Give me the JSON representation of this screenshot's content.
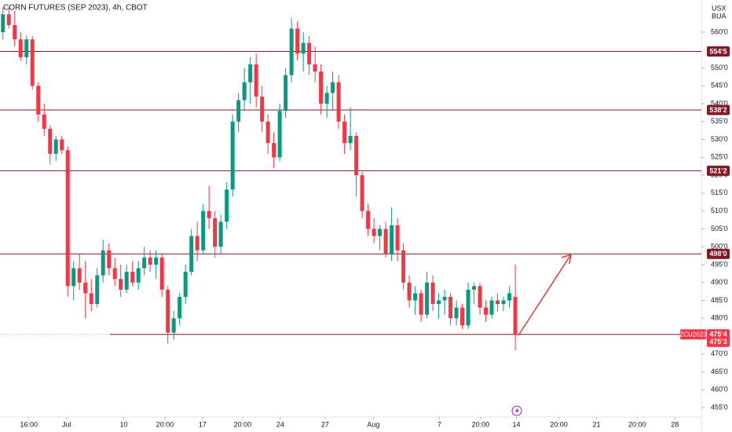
{
  "chart_data": {
    "type": "candlestick",
    "title": "CORN FUTURES (SEP 2023), 4h, CBOT",
    "currency": "USX",
    "unit": "BUA",
    "x": [
      0,
      1,
      2,
      3,
      4,
      5,
      6,
      7,
      8,
      9,
      10,
      11,
      12,
      13,
      14,
      15,
      16,
      17,
      18,
      19,
      20,
      21,
      22,
      23,
      24,
      25,
      26,
      27,
      28,
      29,
      30,
      31,
      32,
      33,
      34,
      35,
      36,
      37,
      38,
      39,
      40,
      41,
      42,
      43,
      44,
      45,
      46,
      47,
      48,
      49,
      50,
      51,
      52,
      53,
      54,
      55,
      56,
      57,
      58,
      59,
      60,
      61,
      62,
      63,
      64,
      65,
      66,
      67,
      68,
      69,
      70,
      71,
      72,
      73,
      74,
      75,
      76,
      77,
      78,
      79,
      80,
      81,
      82,
      83,
      84,
      85,
      86,
      87
    ],
    "open": [
      560,
      565,
      562,
      558,
      553,
      558,
      545,
      537,
      533,
      526,
      530,
      527,
      489,
      494,
      490,
      487,
      484,
      492,
      499,
      494,
      491,
      488,
      493,
      490,
      494,
      497,
      495,
      497,
      488,
      476,
      480,
      486,
      493,
      503,
      499,
      510,
      508,
      500,
      507,
      516,
      535,
      541,
      546,
      551,
      542,
      535,
      529,
      525,
      538,
      548,
      561,
      554,
      557,
      551,
      549,
      540,
      543,
      546,
      535,
      529,
      531,
      520,
      510,
      505,
      503,
      505,
      498,
      506,
      499,
      490,
      485,
      487,
      481,
      490,
      484,
      485,
      486,
      480,
      483,
      478,
      488,
      489,
      483,
      481,
      485,
      484,
      485,
      486
    ],
    "high": [
      567,
      567,
      566,
      560,
      559,
      559,
      546,
      540,
      534,
      531,
      531,
      528,
      496,
      498,
      496,
      491,
      494,
      502,
      501,
      497,
      495,
      495,
      496,
      496,
      500,
      499,
      499,
      498,
      489,
      482,
      487,
      495,
      505,
      507,
      512,
      517,
      510,
      509,
      518,
      537,
      543,
      550,
      553,
      554,
      545,
      537,
      532,
      540,
      550,
      564,
      563,
      560,
      559,
      556,
      551,
      545,
      549,
      548,
      537,
      539,
      532,
      521,
      512,
      508,
      506,
      507,
      511,
      508,
      501,
      492,
      489,
      488,
      493,
      492,
      487,
      488,
      487,
      485,
      484,
      490,
      490,
      490,
      485,
      486,
      487,
      486,
      489,
      495
    ],
    "low": [
      558,
      561,
      556,
      552,
      551,
      544,
      535,
      531,
      523,
      524,
      526,
      486,
      485,
      488,
      480,
      482,
      483,
      490,
      492,
      489,
      486,
      487,
      489,
      488,
      492,
      493,
      491,
      486,
      473,
      474,
      478,
      484,
      492,
      496,
      498,
      505,
      497,
      498,
      505,
      514,
      532,
      538,
      540,
      539,
      532,
      526,
      522,
      524,
      536,
      546,
      552,
      549,
      548,
      546,
      537,
      536,
      538,
      533,
      526,
      527,
      514,
      508,
      503,
      501,
      499,
      497,
      496,
      496,
      488,
      483,
      481,
      479,
      480,
      482,
      480,
      481,
      478,
      478,
      477,
      477,
      484,
      481,
      479,
      480,
      482,
      482,
      483,
      471
    ],
    "close": [
      565,
      562,
      558,
      553,
      558,
      545,
      537,
      533,
      526,
      530,
      527,
      489,
      494,
      490,
      487,
      484,
      492,
      499,
      494,
      491,
      488,
      493,
      490,
      494,
      497,
      495,
      497,
      488,
      476,
      480,
      486,
      493,
      503,
      499,
      510,
      508,
      500,
      507,
      516,
      535,
      541,
      546,
      551,
      542,
      535,
      529,
      525,
      538,
      548,
      561,
      554,
      557,
      551,
      549,
      540,
      543,
      546,
      535,
      529,
      531,
      520,
      510,
      505,
      503,
      505,
      498,
      506,
      499,
      490,
      485,
      487,
      481,
      490,
      484,
      485,
      486,
      480,
      483,
      478,
      488,
      489,
      483,
      481,
      485,
      484,
      485,
      487,
      475.375
    ],
    "up_color": "#089981",
    "down_color": "#f23645",
    "xlim": [
      -0.5,
      118.2
    ],
    "xticks": [
      {
        "value": 4.4,
        "label": "16:00"
      },
      {
        "value": 10.8,
        "label": "Jul"
      },
      {
        "value": 20.5,
        "label": "10"
      },
      {
        "value": 27.5,
        "label": "20:00"
      },
      {
        "value": 33.9,
        "label": "17"
      },
      {
        "value": 40.7,
        "label": "20:00"
      },
      {
        "value": 47.1,
        "label": "24"
      },
      {
        "value": 54.7,
        "label": "27"
      },
      {
        "value": 62.9,
        "label": "Aug"
      },
      {
        "value": 74.1,
        "label": "7"
      },
      {
        "value": 81.1,
        "label": "20:00"
      },
      {
        "value": 87.2,
        "label": "14"
      },
      {
        "value": 94.4,
        "label": "20:00"
      },
      {
        "value": 100.8,
        "label": "21"
      },
      {
        "value": 107.7,
        "label": "20:00"
      },
      {
        "value": 114.1,
        "label": "28"
      }
    ],
    "ylim": [
      451.5,
      569
    ],
    "yticks": [
      {
        "value": 455,
        "label": "455'0"
      },
      {
        "value": 460,
        "label": "460'0"
      },
      {
        "value": 465,
        "label": "465'0"
      },
      {
        "value": 470,
        "label": "470'0"
      },
      {
        "value": 480,
        "label": "480'0"
      },
      {
        "value": 485,
        "label": "485'0"
      },
      {
        "value": 490,
        "label": "490'0"
      },
      {
        "value": 495,
        "label": "495'0"
      },
      {
        "value": 500,
        "label": "500'0"
      },
      {
        "value": 505,
        "label": "505'0"
      },
      {
        "value": 510,
        "label": "510'0"
      },
      {
        "value": 515,
        "label": "515'0"
      },
      {
        "value": 520,
        "label": "520'0"
      },
      {
        "value": 525,
        "label": "525'0"
      },
      {
        "value": 530,
        "label": "530'0"
      },
      {
        "value": 535,
        "label": "535'0"
      },
      {
        "value": 540,
        "label": "540'0"
      },
      {
        "value": 545,
        "label": "545'0"
      },
      {
        "value": 550,
        "label": "550'0"
      },
      {
        "value": 560,
        "label": "560'0"
      }
    ],
    "grid": false,
    "levels": [
      {
        "value": 554.625,
        "label": "554'5"
      },
      {
        "value": 538.25,
        "label": "538'2"
      },
      {
        "value": 521.25,
        "label": "521'2"
      },
      {
        "value": 498,
        "label": "498'0"
      },
      {
        "value": 475.5,
        "label": "475'4"
      }
    ],
    "level_color": "#801922",
    "symbol": "ZCU2023",
    "last_price": {
      "value": 475.375,
      "label": "475'3"
    }
  }
}
